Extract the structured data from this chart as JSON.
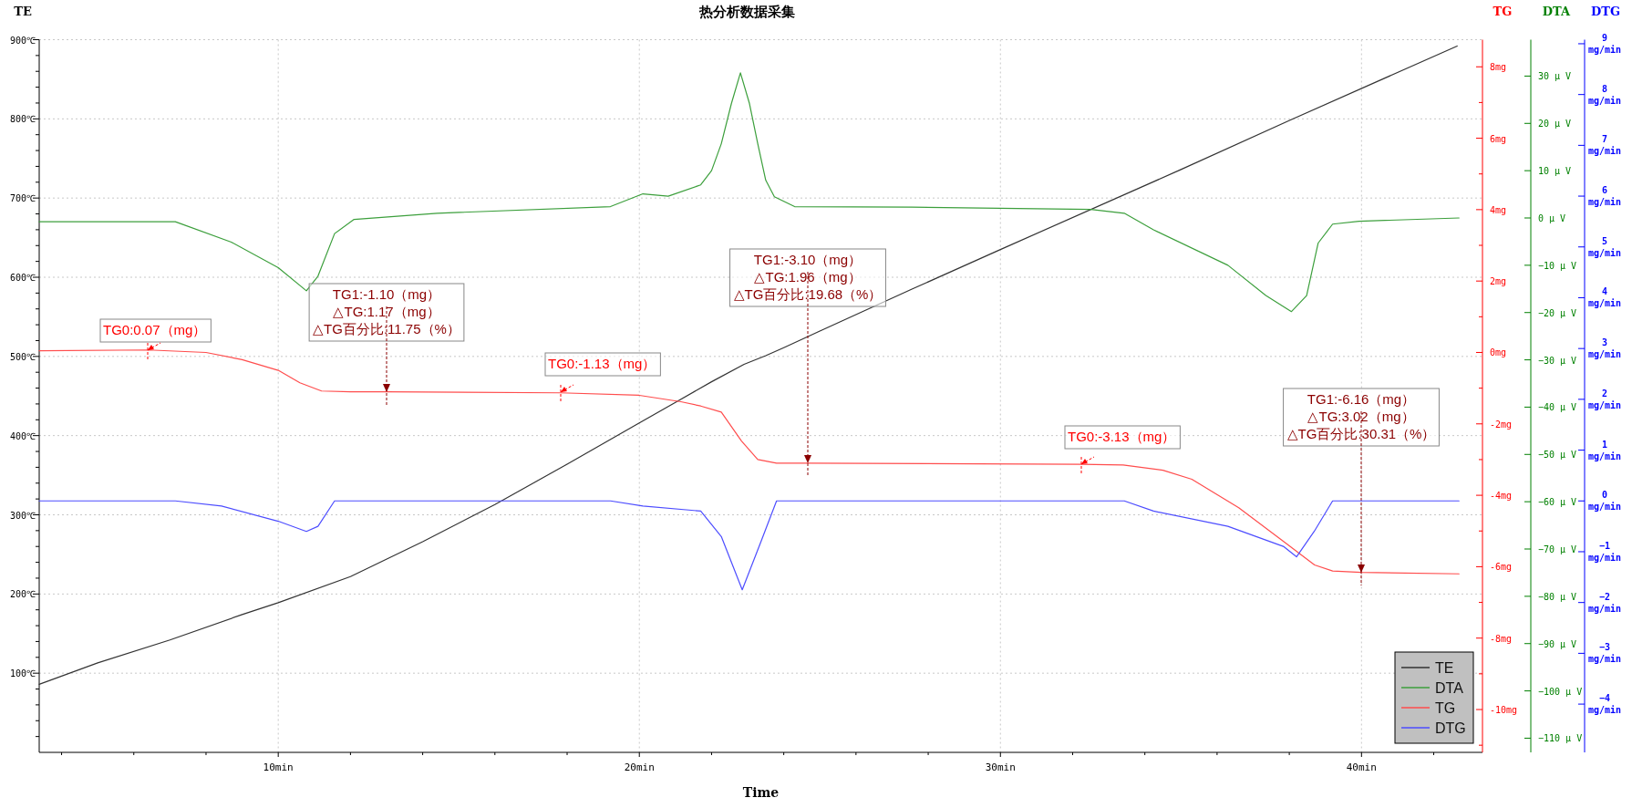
{
  "chart_data": [
    {
      "type": "line",
      "title": "热分析数据采集",
      "xlabel": "Time",
      "ylabel": "TE",
      "y2label": "TG",
      "y3label": "DTA",
      "xlim": [
        3.38,
        43.35
      ],
      "xticks": [
        {
          "value": 4,
          "label": null
        },
        {
          "value": 6,
          "label": null
        },
        {
          "value": 8,
          "label": null
        },
        {
          "value": 10,
          "label": "10min"
        },
        {
          "value": 12,
          "label": null
        },
        {
          "value": 14,
          "label": null
        },
        {
          "value": 16,
          "label": null
        },
        {
          "value": 18,
          "label": null
        },
        {
          "value": 20,
          "label": "20min"
        },
        {
          "value": 22,
          "label": null
        },
        {
          "value": 24,
          "label": null
        },
        {
          "value": 26,
          "label": null
        },
        {
          "value": 28,
          "label": null
        },
        {
          "value": 30,
          "label": "30min"
        },
        {
          "value": 32,
          "label": null
        },
        {
          "value": 34,
          "label": null
        },
        {
          "value": 36,
          "label": null
        },
        {
          "value": 38,
          "label": null
        },
        {
          "value": 40,
          "label": "40min"
        },
        {
          "value": 42,
          "label": null
        }
      ],
      "ylim": [
        0,
        900
      ],
      "yticks": [
        {
          "value": 20,
          "label": null
        },
        {
          "value": 40,
          "label": null
        },
        {
          "value": 60,
          "label": null
        },
        {
          "value": 80,
          "label": null
        },
        {
          "value": 100,
          "label": "100℃"
        },
        {
          "value": 120,
          "label": null
        },
        {
          "value": 140,
          "label": null
        },
        {
          "value": 160,
          "label": null
        },
        {
          "value": 180,
          "label": null
        },
        {
          "value": 200,
          "label": "200℃"
        },
        {
          "value": 220,
          "label": null
        },
        {
          "value": 240,
          "label": null
        },
        {
          "value": 260,
          "label": null
        },
        {
          "value": 280,
          "label": null
        },
        {
          "value": 300,
          "label": "300℃"
        },
        {
          "value": 320,
          "label": null
        },
        {
          "value": 340,
          "label": null
        },
        {
          "value": 360,
          "label": null
        },
        {
          "value": 380,
          "label": null
        },
        {
          "value": 400,
          "label": "400℃"
        },
        {
          "value": 420,
          "label": null
        },
        {
          "value": 440,
          "label": null
        },
        {
          "value": 460,
          "label": null
        },
        {
          "value": 480,
          "label": null
        },
        {
          "value": 500,
          "label": "500℃"
        },
        {
          "value": 520,
          "label": null
        },
        {
          "value": 540,
          "label": null
        },
        {
          "value": 560,
          "label": null
        },
        {
          "value": 580,
          "label": null
        },
        {
          "value": 600,
          "label": "600℃"
        },
        {
          "value": 620,
          "label": null
        },
        {
          "value": 640,
          "label": null
        },
        {
          "value": 660,
          "label": null
        },
        {
          "value": 680,
          "label": null
        },
        {
          "value": 700,
          "label": "700℃"
        },
        {
          "value": 720,
          "label": null
        },
        {
          "value": 740,
          "label": null
        },
        {
          "value": 760,
          "label": null
        },
        {
          "value": 780,
          "label": null
        },
        {
          "value": 800,
          "label": "800℃"
        },
        {
          "value": 820,
          "label": null
        },
        {
          "value": 840,
          "label": null
        },
        {
          "value": 860,
          "label": null
        },
        {
          "value": 880,
          "label": null
        },
        {
          "value": 900,
          "label": "900℃"
        }
      ],
      "y2lim": [
        -11.2,
        8.76
      ],
      "y2ticks": [
        {
          "value": -11,
          "label": null
        },
        {
          "value": -10,
          "label": "-10mg"
        },
        {
          "value": -9,
          "label": null
        },
        {
          "value": -8,
          "label": "-8mg"
        },
        {
          "value": -7,
          "label": null
        },
        {
          "value": -6,
          "label": "-6mg"
        },
        {
          "value": -5,
          "label": null
        },
        {
          "value": -4,
          "label": "-4mg"
        },
        {
          "value": -3,
          "label": null
        },
        {
          "value": -2,
          "label": "-2mg"
        },
        {
          "value": -1,
          "label": null
        },
        {
          "value": 0,
          "label": "0mg"
        },
        {
          "value": 1,
          "label": null
        },
        {
          "value": 2,
          "label": "2mg"
        },
        {
          "value": 3,
          "label": null
        },
        {
          "value": 4,
          "label": "4mg"
        },
        {
          "value": 5,
          "label": null
        },
        {
          "value": 6,
          "label": "6mg"
        },
        {
          "value": 7,
          "label": null
        },
        {
          "value": 8,
          "label": "8mg"
        }
      ],
      "y3lim": [
        -113,
        37.7
      ],
      "y3ticks": [
        {
          "value": -110,
          "label": "−110 µ V"
        },
        {
          "value": -100,
          "label": "−100 µ V"
        },
        {
          "value": -90,
          "label": "−90 µ V"
        },
        {
          "value": -80,
          "label": "−80 µ V"
        },
        {
          "value": -70,
          "label": "−70 µ V"
        },
        {
          "value": -60,
          "label": "−60 µ V"
        },
        {
          "value": -50,
          "label": "−50 µ V"
        },
        {
          "value": -40,
          "label": "−40 µ V"
        },
        {
          "value": -30,
          "label": "−30 µ V"
        },
        {
          "value": -20,
          "label": "−20 µ V"
        },
        {
          "value": -10,
          "label": "−10 µ V"
        },
        {
          "value": 0,
          "label": "0 µ V"
        },
        {
          "value": 10,
          "label": "10 µ V"
        },
        {
          "value": 20,
          "label": "20 µ V"
        },
        {
          "value": 30,
          "label": "30 µ V"
        }
      ],
      "grid": true,
      "legend": "bottom right",
      "series": [
        {
          "name": "TE",
          "color": "#333333",
          "x": [
            3.38,
            5,
            7,
            9,
            10,
            12,
            14,
            16,
            18,
            20,
            21,
            22,
            22.9,
            23.5,
            24,
            25,
            27.55,
            30,
            35,
            38.05,
            42.65
          ],
          "values": [
            86,
            113,
            142,
            174,
            189,
            222,
            266,
            313,
            364,
            416,
            442,
            468,
            490,
            501,
            511,
            532,
            585,
            635,
            736,
            799,
            892
          ]
        },
        {
          "name": "DTA",
          "color": "#3c9f3c",
          "axis": "y3",
          "x": [
            3.38,
            7.15,
            8.7,
            10,
            10.78,
            11.1,
            11.56,
            12.1,
            14.4,
            19.2,
            20.1,
            20.8,
            21.7,
            22.0,
            22.27,
            22.55,
            22.8,
            23.05,
            23.28,
            23.5,
            23.74,
            24.3,
            27.55,
            32.5,
            33.43,
            34.24,
            36.3,
            37.35,
            38.06,
            38.48,
            38.8,
            39.2,
            39.93,
            42.7
          ],
          "values": [
            -0.8,
            -0.8,
            -5.1,
            -10.5,
            -15.4,
            -12.3,
            -3.3,
            -0.3,
            1.0,
            2.4,
            5.1,
            4.6,
            7.0,
            10.0,
            15.7,
            24.2,
            30.7,
            24.2,
            15.7,
            8.0,
            4.5,
            2.4,
            2.3,
            1.8,
            1.0,
            -2.5,
            -10.0,
            -16.4,
            -19.8,
            -16.4,
            -5.3,
            -1.3,
            -0.7,
            0.0
          ]
        },
        {
          "name": "TG",
          "color": "#ff4d4d",
          "axis": "y2",
          "x": [
            3.38,
            6.41,
            8,
            9,
            10,
            10.6,
            11.2,
            12,
            13,
            17.82,
            20,
            21.15,
            21.7,
            22.27,
            22.83,
            23.28,
            23.8,
            24.67,
            32.24,
            33.4,
            34.5,
            35.3,
            36.6,
            37.85,
            38.7,
            39.2,
            39.99,
            42.7
          ],
          "values": [
            0.05,
            0.07,
            0.0,
            -0.2,
            -0.5,
            -0.85,
            -1.08,
            -1.1,
            -1.1,
            -1.13,
            -1.2,
            -1.38,
            -1.5,
            -1.67,
            -2.48,
            -3.0,
            -3.1,
            -3.1,
            -3.13,
            -3.15,
            -3.3,
            -3.55,
            -4.35,
            -5.3,
            -5.95,
            -6.12,
            -6.16,
            -6.2
          ]
        }
      ],
      "annotations": [
        "TG0:0.07（mg）",
        "TG1:-1.10（mg）\n△TG:1.17（mg）\n△TG百分比:11.75（%）",
        "TG0:-1.13（mg）",
        "TG1:-3.10（mg）\n△TG:1.96（mg）\n△TG百分比:19.68（%）",
        "TG0:-3.13（mg）",
        "TG1:-6.16（mg）\n△TG:3.02（mg）\n△TG百分比:30.31（%）"
      ]
    },
    {
      "type": "line",
      "ylabel": "DTG",
      "xlim": [
        3.38,
        43.35
      ],
      "ylim": [
        -4.95,
        9.08
      ],
      "tick_labels": "y",
      "yticks": [
        {
          "value": -4,
          "label": "−4\nmg/min"
        },
        {
          "value": -3,
          "label": "−3\nmg/min"
        },
        {
          "value": -2,
          "label": "−2\nmg/min"
        },
        {
          "value": -1,
          "label": "−1\nmg/min"
        },
        {
          "value": 0,
          "label": "0\nmg/min"
        },
        {
          "value": 1,
          "label": "1\nmg/min"
        },
        {
          "value": 2,
          "label": "2\nmg/min"
        },
        {
          "value": 3,
          "label": "3\nmg/min"
        },
        {
          "value": 4,
          "label": "4\nmg/min"
        },
        {
          "value": 5,
          "label": "5\nmg/min"
        },
        {
          "value": 6,
          "label": "6\nmg/min"
        },
        {
          "value": 7,
          "label": "7\nmg/min"
        },
        {
          "value": 8,
          "label": "8\nmg/min"
        },
        {
          "value": 9,
          "label": "9\nmg/min"
        }
      ],
      "series": [
        {
          "name": "DTG",
          "color": "#4d4dff",
          "x": [
            3.38,
            7.15,
            8.43,
            10,
            10.78,
            11.1,
            11.56,
            12.1,
            19.2,
            20.1,
            21.7,
            22.27,
            22.85,
            23.37,
            23.8,
            24.3,
            33.43,
            34.24,
            36.3,
            37.85,
            38.2,
            38.69,
            39.2,
            42.7
          ],
          "values": [
            0.0,
            0.0,
            -0.1,
            -0.4,
            -0.6,
            -0.5,
            0.0,
            0.0,
            0.0,
            -0.1,
            -0.2,
            -0.7,
            -1.75,
            -0.8,
            0.0,
            0.0,
            0.0,
            -0.2,
            -0.5,
            -0.9,
            -1.1,
            -0.6,
            0.0,
            0.0
          ]
        }
      ]
    }
  ]
}
